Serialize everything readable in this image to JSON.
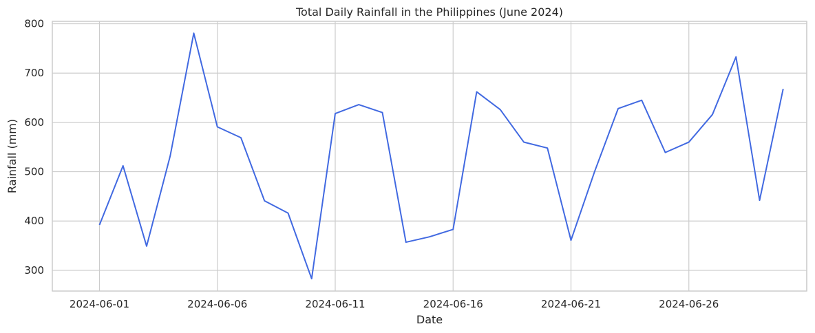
{
  "chart_data": {
    "type": "line",
    "title": "Total Daily Rainfall in the Philippines (June 2024)",
    "xlabel": "Date",
    "ylabel": "Rainfall (mm)",
    "x": [
      "2024-06-01",
      "2024-06-02",
      "2024-06-03",
      "2024-06-04",
      "2024-06-05",
      "2024-06-06",
      "2024-06-07",
      "2024-06-08",
      "2024-06-09",
      "2024-06-10",
      "2024-06-11",
      "2024-06-12",
      "2024-06-13",
      "2024-06-14",
      "2024-06-15",
      "2024-06-16",
      "2024-06-17",
      "2024-06-18",
      "2024-06-19",
      "2024-06-20",
      "2024-06-21",
      "2024-06-22",
      "2024-06-23",
      "2024-06-24",
      "2024-06-25",
      "2024-06-26",
      "2024-06-27",
      "2024-06-28",
      "2024-06-29",
      "2024-06-30"
    ],
    "series": [
      {
        "values": [
          392,
          512,
          349,
          532,
          781,
          591,
          569,
          441,
          416,
          283,
          618,
          636,
          620,
          357,
          368,
          383,
          662,
          626,
          560,
          548,
          361,
          500,
          628,
          645,
          539,
          560,
          616,
          733,
          442,
          668
        ],
        "color": "#4169e1"
      }
    ],
    "xlim": [
      "2024-05-30",
      "2024-07-01"
    ],
    "ylim": [
      258,
      805
    ],
    "xticks": [
      "2024-06-01",
      "2024-06-06",
      "2024-06-11",
      "2024-06-16",
      "2024-06-21",
      "2024-06-26",
      "2024-07-01"
    ],
    "xtick_labels": [
      "2024-06-01",
      "2024-06-06",
      "2024-06-11",
      "2024-06-16",
      "2024-06-21",
      "2024-06-26",
      ""
    ],
    "yticks": [
      300,
      400,
      500,
      600,
      700,
      800
    ],
    "grid": true,
    "colors": {
      "grid": "#cccccc",
      "frame": "#cccccc",
      "line": "#4169e1",
      "text": "#262626"
    }
  }
}
